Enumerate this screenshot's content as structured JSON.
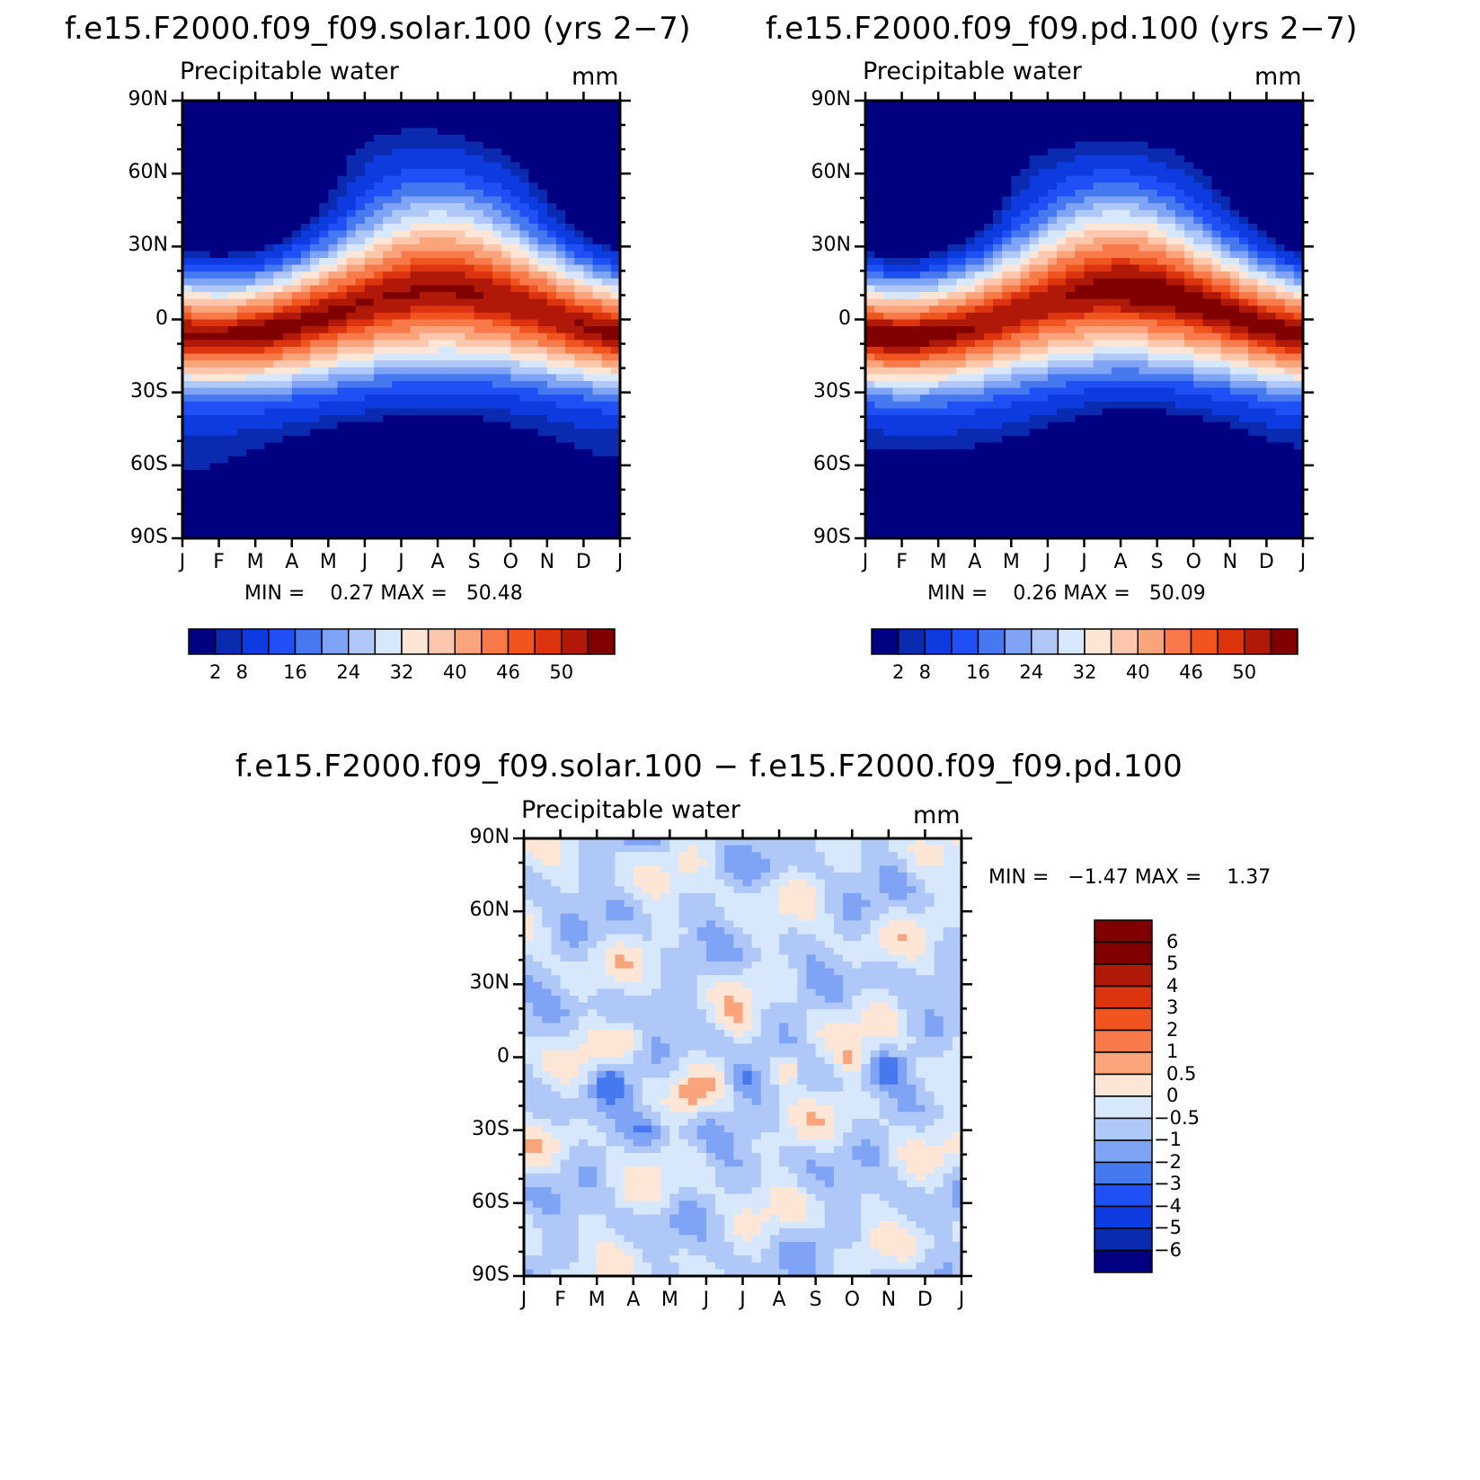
{
  "months": [
    "J",
    "F",
    "M",
    "A",
    "M",
    "J",
    "J",
    "A",
    "S",
    "O",
    "N",
    "D",
    "J"
  ],
  "lat_labels": [
    "90N",
    "60N",
    "30N",
    "0",
    "30S",
    "60S",
    "90S"
  ],
  "panels": [
    {
      "title": "f.e15.F2000.f09_f09.solar.100 (yrs 2−7)",
      "variable": "Precipitable water",
      "units": "mm",
      "stats": "MIN =    0.27 MAX =   50.48",
      "chart_data": {
        "type": "heatmap",
        "x_axis": [
          "J",
          "F",
          "M",
          "A",
          "M",
          "J",
          "J",
          "A",
          "S",
          "O",
          "N",
          "D",
          "J"
        ],
        "y_axis": [
          "90N",
          "60N",
          "30N",
          "0",
          "30S",
          "60S",
          "90S"
        ],
        "min": 0.27,
        "max": 50.48,
        "colorbar_labels": [
          "2",
          "8",
          "16",
          "24",
          "32",
          "40",
          "46",
          "50"
        ]
      }
    },
    {
      "title": "f.e15.F2000.f09_f09.pd.100 (yrs 2−7)",
      "variable": "Precipitable water",
      "units": "mm",
      "stats": "MIN =    0.26 MAX =   50.09",
      "chart_data": {
        "type": "heatmap",
        "x_axis": [
          "J",
          "F",
          "M",
          "A",
          "M",
          "J",
          "J",
          "A",
          "S",
          "O",
          "N",
          "D",
          "J"
        ],
        "y_axis": [
          "90N",
          "60N",
          "30N",
          "0",
          "30S",
          "60S",
          "90S"
        ],
        "min": 0.26,
        "max": 50.09,
        "colorbar_labels": [
          "2",
          "8",
          "16",
          "24",
          "32",
          "40",
          "46",
          "50"
        ]
      }
    },
    {
      "title": "f.e15.F2000.f09_f09.solar.100 − f.e15.F2000.f09_f09.pd.100",
      "variable": "Precipitable water",
      "units": "mm",
      "stats": "MIN =   −1.47 MAX =    1.37",
      "chart_data": {
        "type": "heatmap",
        "x_axis": [
          "J",
          "F",
          "M",
          "A",
          "M",
          "J",
          "J",
          "A",
          "S",
          "O",
          "N",
          "D",
          "J"
        ],
        "y_axis": [
          "90N",
          "60N",
          "30N",
          "0",
          "30S",
          "60S",
          "90S"
        ],
        "min": -1.47,
        "max": 1.37,
        "colorbar_labels": [
          "6",
          "5",
          "4",
          "3",
          "2",
          "1",
          "0.5",
          "0",
          "−0.5",
          "−1",
          "−2",
          "−3",
          "−4",
          "−5",
          "−6"
        ]
      }
    }
  ],
  "colors": {
    "abs_scale": [
      "#000080",
      "#0a2bb0",
      "#0d3be0",
      "#1e50f5",
      "#4678f0",
      "#7fa3f5",
      "#b0c8f8",
      "#d8e8fc",
      "#fde6d6",
      "#fcc7ac",
      "#faa47c",
      "#f87a4a",
      "#f05520",
      "#dd3410",
      "#b01808",
      "#800000"
    ],
    "diff_scale": [
      "#800000",
      "#b01808",
      "#dd3410",
      "#f05520",
      "#f87a4a",
      "#faa47c",
      "#fde6d6",
      "#d8e8fc",
      "#b0c8f8",
      "#7fa3f5",
      "#4678f0",
      "#1e50f5",
      "#0d3be0",
      "#0a2bb0",
      "#000080"
    ]
  }
}
